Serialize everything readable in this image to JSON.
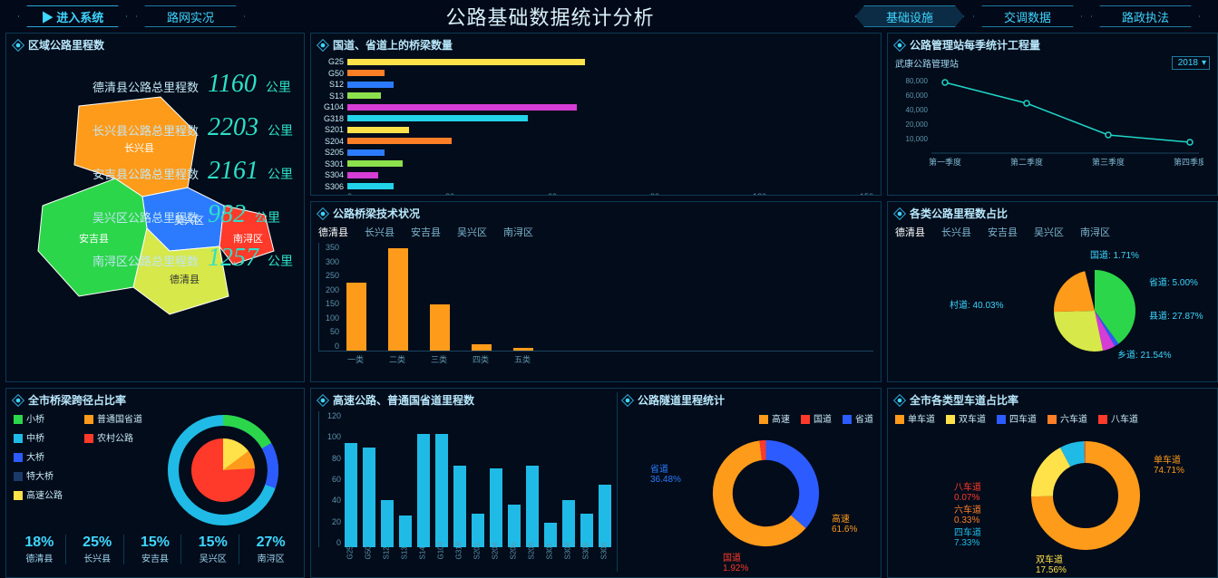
{
  "header": {
    "title": "公路基础数据统计分析",
    "buttons": {
      "enter": "▶ 进入系统",
      "road": "路网实况",
      "infra": "基础设施",
      "traffic": "交调数据",
      "law": "路政执法"
    }
  },
  "bridgeCount": {
    "title": "国道、省道上的桥梁数量",
    "axis": [
      "0",
      "30",
      "60",
      "90",
      "120",
      "150"
    ],
    "max": 160,
    "rows": [
      {
        "label": "G25",
        "value": 155,
        "color": "#ffe24a"
      },
      {
        "label": "G50",
        "value": 24,
        "color": "#ff7f27"
      },
      {
        "label": "S12",
        "value": 30,
        "color": "#2c7bff"
      },
      {
        "label": "S13",
        "value": 22,
        "color": "#8ce04c"
      },
      {
        "label": "G104",
        "value": 150,
        "color": "#d63cd6"
      },
      {
        "label": "G318",
        "value": 118,
        "color": "#22d2e8"
      },
      {
        "label": "S201",
        "value": 40,
        "color": "#ffe24a"
      },
      {
        "label": "S204",
        "value": 68,
        "color": "#ff7f27"
      },
      {
        "label": "S205",
        "value": 24,
        "color": "#2c7bff"
      },
      {
        "label": "S301",
        "value": 36,
        "color": "#8ce04c"
      },
      {
        "label": "S304",
        "value": 20,
        "color": "#d63cd6"
      },
      {
        "label": "S306",
        "value": 30,
        "color": "#22d2e8"
      }
    ]
  },
  "bridgeTech": {
    "title": "公路桥梁技术状况",
    "tabs": [
      "德清县",
      "长兴县",
      "安吉县",
      "吴兴区",
      "南浔区"
    ],
    "yticks": [
      "350",
      "300",
      "250",
      "200",
      "150",
      "100",
      "50",
      "0"
    ],
    "xlabels": [
      "一类",
      "二类",
      "三类",
      "四类",
      "五类"
    ],
    "values": [
      220,
      330,
      150,
      20,
      8
    ],
    "bar_color": "#ff9b1a"
  },
  "bridgeSpan": {
    "title": "全市桥梁跨径占比率",
    "categories": [
      {
        "label": "小桥",
        "color": "#2cd64a"
      },
      {
        "label": "中桥",
        "color": "#1fbbe6"
      },
      {
        "label": "大桥",
        "color": "#2c5bff"
      },
      {
        "label": "特大桥",
        "color": "#1a3a6a"
      },
      {
        "label": "高速公路",
        "color": "#ffe24a"
      }
    ],
    "road_types": [
      {
        "label": "普通国省道",
        "color": "#ff9b1a"
      },
      {
        "label": "农村公路",
        "color": "#ff3a2a"
      }
    ],
    "percents": [
      {
        "val": "18%",
        "lab": "德清县"
      },
      {
        "val": "25%",
        "lab": "长兴县"
      },
      {
        "val": "15%",
        "lab": "安吉县"
      },
      {
        "val": "15%",
        "lab": "吴兴区"
      },
      {
        "val": "27%",
        "lab": "南浔区"
      }
    ]
  },
  "region": {
    "title": "区域公路里程数",
    "map_regions": [
      {
        "label": "长兴县",
        "color": "#ff9b1a"
      },
      {
        "label": "吴兴区",
        "color": "#2c7bff"
      },
      {
        "label": "南浔区",
        "color": "#ff3a2a"
      },
      {
        "label": "安吉县",
        "color": "#2cd64a"
      },
      {
        "label": "德清县",
        "color": "#d6e84a"
      }
    ],
    "stats": [
      {
        "lbl": "德清县公路总里程数",
        "num": "1160",
        "unit": "公里"
      },
      {
        "lbl": "长兴县公路总里程数",
        "num": "2203",
        "unit": "公里"
      },
      {
        "lbl": "安吉县公路总里程数",
        "num": "2161",
        "unit": "公里"
      },
      {
        "lbl": "吴兴区公路总里程数",
        "num": "982",
        "unit": "公里"
      },
      {
        "lbl": "南浔区公路总里程数",
        "num": "1257",
        "unit": "公里"
      }
    ]
  },
  "highway": {
    "title": "高速公路、普通国省道里程数",
    "yticks": [
      "120",
      "100",
      "80",
      "60",
      "40",
      "20",
      "0"
    ],
    "max": 120,
    "bars": [
      {
        "label": "G25",
        "value": 92
      },
      {
        "label": "G50",
        "value": 88
      },
      {
        "label": "S12",
        "value": 42
      },
      {
        "label": "S13",
        "value": 28
      },
      {
        "label": "S14",
        "value": 100
      },
      {
        "label": "G104",
        "value": 100
      },
      {
        "label": "G318",
        "value": 72
      },
      {
        "label": "S201",
        "value": 30
      },
      {
        "label": "S204",
        "value": 70
      },
      {
        "label": "S205",
        "value": 38
      },
      {
        "label": "S206",
        "value": 72
      },
      {
        "label": "S301",
        "value": 22
      },
      {
        "label": "S304",
        "value": 42
      },
      {
        "label": "S305",
        "value": 30
      },
      {
        "label": "S306",
        "value": 55
      }
    ],
    "bar_color": "#1fbbe6"
  },
  "tunnel": {
    "title": "公路隧道里程统计",
    "legend": [
      {
        "label": "高速",
        "color": "#ff9b1a"
      },
      {
        "label": "国道",
        "color": "#ff3a2a"
      },
      {
        "label": "省道",
        "color": "#2c5bff"
      }
    ],
    "segments": [
      {
        "label": "省道",
        "pct": "36.48%",
        "color": "#2c5bff"
      },
      {
        "label": "高速",
        "pct": "61.6%",
        "color": "#ff9b1a"
      },
      {
        "label": "国道",
        "pct": "1.92%",
        "color": "#ff3a2a"
      }
    ]
  },
  "mgmt": {
    "title": "公路管理站每季统计工程量",
    "station": "武康公路管理站",
    "year": "2018",
    "yticks": [
      "80,000",
      "60,000",
      "40,000",
      "20,000",
      "10,000"
    ],
    "xlabels": [
      "第一季度",
      "第二季度",
      "第三季度",
      "第四季度"
    ],
    "points": [
      78000,
      55000,
      20000,
      12000
    ]
  },
  "roadType": {
    "title": "各类公路里程数占比",
    "tabs": [
      "德清县",
      "长兴县",
      "安吉县",
      "吴兴区",
      "南浔区"
    ],
    "slices": [
      {
        "label": "村道",
        "pct": "40.03%",
        "color": "#2cd64a"
      },
      {
        "label": "国道",
        "pct": "1.71%",
        "color": "#2c5bff"
      },
      {
        "label": "省道",
        "pct": "5.00%",
        "color": "#d63cd6"
      },
      {
        "label": "县道",
        "pct": "27.87%",
        "color": "#d6e84a"
      },
      {
        "label": "乡道",
        "pct": "21.54%",
        "color": "#ff9b1a"
      }
    ]
  },
  "lane": {
    "title": "全市各类型车道占比率",
    "legend": [
      {
        "label": "单车道",
        "color": "#ff9b1a"
      },
      {
        "label": "双车道",
        "color": "#ffe24a"
      },
      {
        "label": "四车道",
        "color": "#2c5bff"
      },
      {
        "label": "六车道",
        "color": "#ff7f27"
      },
      {
        "label": "八车道",
        "color": "#ff3a2a"
      }
    ],
    "segments": [
      {
        "label": "单车道",
        "pct": "74.71%",
        "color": "#ff9b1a"
      },
      {
        "label": "双车道",
        "pct": "17.56%",
        "color": "#ffe24a"
      },
      {
        "label": "四车道",
        "pct": "7.33%",
        "color": "#1fbbe6"
      },
      {
        "label": "六车道",
        "pct": "0.33%",
        "color": "#ff7f27"
      },
      {
        "label": "八车道",
        "pct": "0.07%",
        "color": "#ff3a2a"
      }
    ]
  }
}
